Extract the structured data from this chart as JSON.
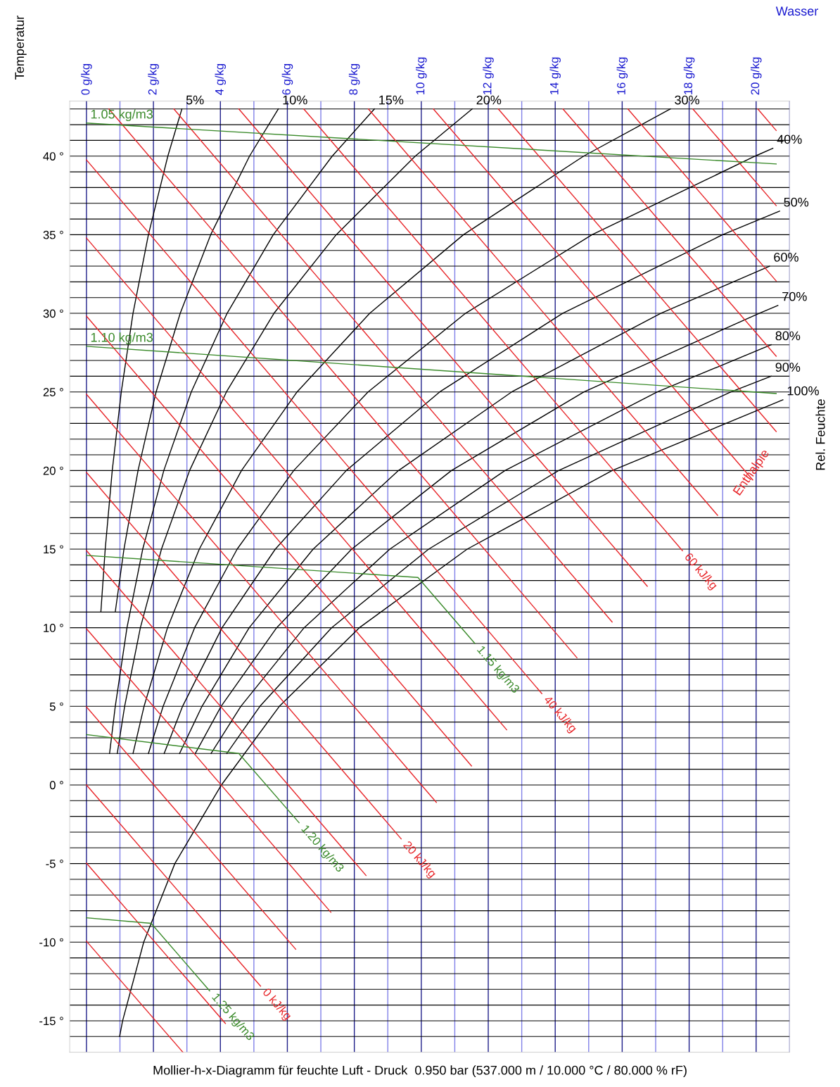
{
  "chart_data": {
    "type": "line",
    "title": "Mollier-h-x-Diagramm für feuchte Luft - Druck  0.950 bar (537.000 m / 10.000 °C / 80.000 % rF)",
    "xlabel": "Wasser",
    "ylabel": "Temperatur",
    "annotations": [
      "Rel. Feuchte",
      "Enthalpie"
    ],
    "grid": true,
    "xlim": [
      -0.5,
      21
    ],
    "ylim": [
      -17,
      43.5
    ],
    "xticks": [
      {
        "value": 0,
        "label": "0 g/kg"
      },
      {
        "value": 1,
        "label": null
      },
      {
        "value": 2,
        "label": "2 g/kg"
      },
      {
        "value": 3,
        "label": null
      },
      {
        "value": 4,
        "label": "4 g/kg"
      },
      {
        "value": 5,
        "label": null
      },
      {
        "value": 6,
        "label": "6 g/kg"
      },
      {
        "value": 7,
        "label": null
      },
      {
        "value": 8,
        "label": "8 g/kg"
      },
      {
        "value": 9,
        "label": null
      },
      {
        "value": 10,
        "label": "10 g/kg"
      },
      {
        "value": 11,
        "label": null
      },
      {
        "value": 12,
        "label": "12 g/kg"
      },
      {
        "value": 13,
        "label": null
      },
      {
        "value": 14,
        "label": "14 g/kg"
      },
      {
        "value": 15,
        "label": null
      },
      {
        "value": 16,
        "label": "16 g/kg"
      },
      {
        "value": 17,
        "label": null
      },
      {
        "value": 18,
        "label": "18 g/kg"
      },
      {
        "value": 19,
        "label": null
      },
      {
        "value": 20,
        "label": "20 g/kg"
      },
      {
        "value": 21,
        "label": null
      }
    ],
    "yticks": [
      {
        "value": -16,
        "label": null
      },
      {
        "value": -15,
        "label": "-15 °"
      },
      {
        "value": -14,
        "label": null
      },
      {
        "value": -13,
        "label": null
      },
      {
        "value": -12,
        "label": null
      },
      {
        "value": -11,
        "label": null
      },
      {
        "value": -10,
        "label": "-10 °"
      },
      {
        "value": -9,
        "label": null
      },
      {
        "value": -8,
        "label": null
      },
      {
        "value": -7,
        "label": null
      },
      {
        "value": -6,
        "label": null
      },
      {
        "value": -5,
        "label": "-5 °"
      },
      {
        "value": -4,
        "label": null
      },
      {
        "value": -3,
        "label": null
      },
      {
        "value": -2,
        "label": null
      },
      {
        "value": -1,
        "label": null
      },
      {
        "value": 0,
        "label": "0 °"
      },
      {
        "value": 1,
        "label": null
      },
      {
        "value": 2,
        "label": null
      },
      {
        "value": 3,
        "label": null
      },
      {
        "value": 4,
        "label": null
      },
      {
        "value": 5,
        "label": "5 °"
      },
      {
        "value": 6,
        "label": null
      },
      {
        "value": 7,
        "label": null
      },
      {
        "value": 8,
        "label": null
      },
      {
        "value": 9,
        "label": null
      },
      {
        "value": 10,
        "label": "10 °"
      },
      {
        "value": 11,
        "label": null
      },
      {
        "value": 12,
        "label": null
      },
      {
        "value": 13,
        "label": null
      },
      {
        "value": 14,
        "label": null
      },
      {
        "value": 15,
        "label": "15 °"
      },
      {
        "value": 16,
        "label": null
      },
      {
        "value": 17,
        "label": null
      },
      {
        "value": 18,
        "label": null
      },
      {
        "value": 19,
        "label": null
      },
      {
        "value": 20,
        "label": "20 °"
      },
      {
        "value": 21,
        "label": null
      },
      {
        "value": 22,
        "label": null
      },
      {
        "value": 23,
        "label": null
      },
      {
        "value": 24,
        "label": null
      },
      {
        "value": 25,
        "label": "25 °"
      },
      {
        "value": 26,
        "label": null
      },
      {
        "value": 27,
        "label": null
      },
      {
        "value": 28,
        "label": null
      },
      {
        "value": 29,
        "label": null
      },
      {
        "value": 30,
        "label": "30 °"
      },
      {
        "value": 31,
        "label": null
      },
      {
        "value": 32,
        "label": null
      },
      {
        "value": 33,
        "label": null
      },
      {
        "value": 34,
        "label": null
      },
      {
        "value": 35,
        "label": "35 °"
      },
      {
        "value": 36,
        "label": null
      },
      {
        "value": 37,
        "label": null
      },
      {
        "value": 38,
        "label": null
      },
      {
        "value": 39,
        "label": null
      },
      {
        "value": 40,
        "label": "40 °"
      },
      {
        "value": 41,
        "label": null
      },
      {
        "value": 42,
        "label": null
      },
      {
        "value": 43,
        "label": null
      }
    ],
    "series": [
      {
        "name": "5%",
        "color": "#000000",
        "x": [
          0.43,
          0.56,
          0.77,
          1.04,
          1.39,
          1.85,
          2.43,
          2.85
        ],
        "values": [
          11,
          15,
          20,
          25,
          30,
          35,
          40,
          43
        ]
      },
      {
        "name": "10%",
        "color": "#000000",
        "x": [
          0.86,
          1.12,
          1.54,
          2.08,
          2.8,
          3.71,
          4.87,
          5.73
        ],
        "values": [
          11,
          15,
          20,
          25,
          30,
          35,
          40,
          43
        ]
      },
      {
        "name": "15%",
        "color": "#000000",
        "x": [
          0.69,
          0.86,
          1.21,
          1.68,
          2.31,
          3.13,
          4.2,
          5.58,
          7.34,
          8.6
        ],
        "values": [
          2,
          5,
          10,
          15,
          20,
          25,
          30,
          35,
          40,
          43
        ]
      },
      {
        "name": "20%",
        "color": "#000000",
        "x": [
          0.92,
          1.14,
          1.61,
          2.24,
          3.08,
          4.18,
          5.6,
          7.46,
          9.82,
          11.52
        ],
        "values": [
          2,
          5,
          10,
          15,
          20,
          25,
          30,
          35,
          40,
          43
        ]
      },
      {
        "name": "30%",
        "color": "#000000",
        "x": [
          1.39,
          1.72,
          2.42,
          3.37,
          4.63,
          6.29,
          8.46,
          11.26,
          14.85,
          17.44
        ],
        "values": [
          2,
          5,
          10,
          15,
          20,
          25,
          30,
          35,
          40,
          43
        ]
      },
      {
        "name": "40%",
        "color": "#000000",
        "x": [
          1.85,
          2.29,
          3.23,
          4.5,
          6.19,
          8.41,
          11.32,
          15.1,
          19.97,
          20.5
        ],
        "values": [
          2,
          5,
          10,
          15,
          20,
          25,
          30,
          35,
          40,
          40.5
        ]
      },
      {
        "name": "50%",
        "color": "#000000",
        "x": [
          2.32,
          2.87,
          4.05,
          5.64,
          7.76,
          10.55,
          14.22,
          19.0,
          20.7
        ],
        "values": [
          2,
          5,
          10,
          15,
          20,
          25,
          30,
          35,
          36.5
        ]
      },
      {
        "name": "60%",
        "color": "#000000",
        "x": [
          2.78,
          3.45,
          4.86,
          6.77,
          9.32,
          12.7,
          17.15,
          20.4
        ],
        "values": [
          2,
          5,
          10,
          15,
          20,
          25,
          30,
          33
        ]
      },
      {
        "name": "70%",
        "color": "#000000",
        "x": [
          3.25,
          4.02,
          5.68,
          7.92,
          10.9,
          14.86,
          20.09,
          20.65
        ],
        "values": [
          2,
          5,
          10,
          15,
          20,
          25,
          30,
          30.5
        ]
      },
      {
        "name": "80%",
        "color": "#000000",
        "x": [
          3.72,
          4.61,
          6.5,
          9.06,
          12.5,
          17.05,
          20.45
        ],
        "values": [
          2,
          5,
          10,
          15,
          20,
          25,
          28
        ]
      },
      {
        "name": "90%",
        "color": "#000000",
        "x": [
          4.19,
          5.18,
          7.32,
          10.22,
          14.1,
          19.25,
          20.45
        ],
        "values": [
          2,
          5,
          10,
          15,
          20,
          25,
          26
        ]
      },
      {
        "name": "100%",
        "color": "#000000",
        "x": [
          0.99,
          1.08,
          1.71,
          2.64,
          4.03,
          5.76,
          8.15,
          11.37,
          15.7,
          20.8
        ],
        "values": [
          -16,
          -15,
          -10,
          -5,
          0,
          5,
          10,
          15,
          20,
          24.5
        ]
      },
      {
        "color": "#e8262a",
        "x": [
          0,
          2.88
        ],
        "values": [
          -9.94,
          -17
        ]
      },
      {
        "color": "#e8262a",
        "x": [
          0,
          4.15
        ],
        "values": [
          -4.97,
          -15.17
        ]
      },
      {
        "name": "0 kJ/kg",
        "color": "#e8262a",
        "x": [
          0,
          5.2
        ],
        "values": [
          0,
          -12.8
        ]
      },
      {
        "color": "#e8262a",
        "x": [
          0,
          6.25
        ],
        "values": [
          4.97,
          -10.45
        ]
      },
      {
        "color": "#e8262a",
        "x": [
          0,
          7.3
        ],
        "values": [
          9.94,
          -8.1
        ]
      },
      {
        "color": "#e8262a",
        "x": [
          0,
          8.35
        ],
        "values": [
          14.91,
          -5.76
        ]
      },
      {
        "name": "20 kJ/kg",
        "color": "#e8262a",
        "x": [
          0,
          9.4
        ],
        "values": [
          19.88,
          -3.43
        ]
      },
      {
        "color": "#e8262a",
        "x": [
          0,
          10.45
        ],
        "values": [
          24.85,
          -1.11
        ]
      },
      {
        "color": "#e8262a",
        "x": [
          0,
          11.5
        ],
        "values": [
          29.82,
          1.21
        ]
      },
      {
        "color": "#e8262a",
        "x": [
          0,
          12.55
        ],
        "values": [
          34.79,
          3.51
        ]
      },
      {
        "name": "40 kJ/kg",
        "color": "#e8262a",
        "x": [
          0,
          13.6
        ],
        "values": [
          39.76,
          5.81
        ]
      },
      {
        "color": "#e8262a",
        "x": [
          0.67,
          14.65
        ],
        "values": [
          43,
          8.09
        ]
      },
      {
        "color": "#e8262a",
        "x": [
          2.61,
          15.7
        ],
        "values": [
          43,
          10.37
        ]
      },
      {
        "color": "#e8262a",
        "x": [
          4.55,
          16.75
        ],
        "values": [
          43,
          12.64
        ]
      },
      {
        "name": "60 kJ/kg",
        "color": "#e8262a",
        "x": [
          6.49,
          17.8
        ],
        "values": [
          43,
          14.9
        ]
      },
      {
        "color": "#e8262a",
        "x": [
          8.42,
          18.85
        ],
        "values": [
          43,
          17.15
        ]
      },
      {
        "color": "#e8262a",
        "x": [
          10.36,
          19.9
        ],
        "values": [
          43,
          19.4
        ]
      },
      {
        "color": "#e8262a",
        "x": [
          12.3,
          20.6
        ],
        "values": [
          43,
          22.48
        ]
      },
      {
        "color": "#e8262a",
        "x": [
          14.23,
          20.6
        ],
        "values": [
          43,
          27.27
        ]
      },
      {
        "color": "#e8262a",
        "x": [
          16.17,
          20.6
        ],
        "values": [
          43,
          32.06
        ]
      },
      {
        "color": "#e8262a",
        "x": [
          18.11,
          20.6
        ],
        "values": [
          43,
          36.85
        ]
      },
      {
        "color": "#e8262a",
        "x": [
          20.05,
          20.6
        ],
        "values": [
          43,
          41.63
        ]
      },
      {
        "name": "1.05 kg/m3",
        "color": "#3a8a2a",
        "x": [
          20.6,
          0
        ],
        "values": [
          39.5,
          42.1
        ]
      },
      {
        "name": "1.10 kg/m3",
        "color": "#3a8a2a",
        "x": [
          20.6,
          0
        ],
        "values": [
          24.9,
          27.9
        ]
      },
      {
        "name": "1.15 kg/m3",
        "color": "#3a8a2a",
        "x": [
          0,
          9.9,
          11.6
        ],
        "values": [
          14.6,
          13.2,
          9.0
        ]
      },
      {
        "name": "1.20 kg/m3",
        "color": "#3a8a2a",
        "x": [
          0,
          4.55,
          6.35
        ],
        "values": [
          3.2,
          2.0,
          -2.4
        ]
      },
      {
        "name": "1.25 kg/m3",
        "color": "#3a8a2a",
        "x": [
          0,
          1.93,
          3.68
        ],
        "values": [
          -8.45,
          -8.8,
          -13.1
        ]
      }
    ]
  }
}
